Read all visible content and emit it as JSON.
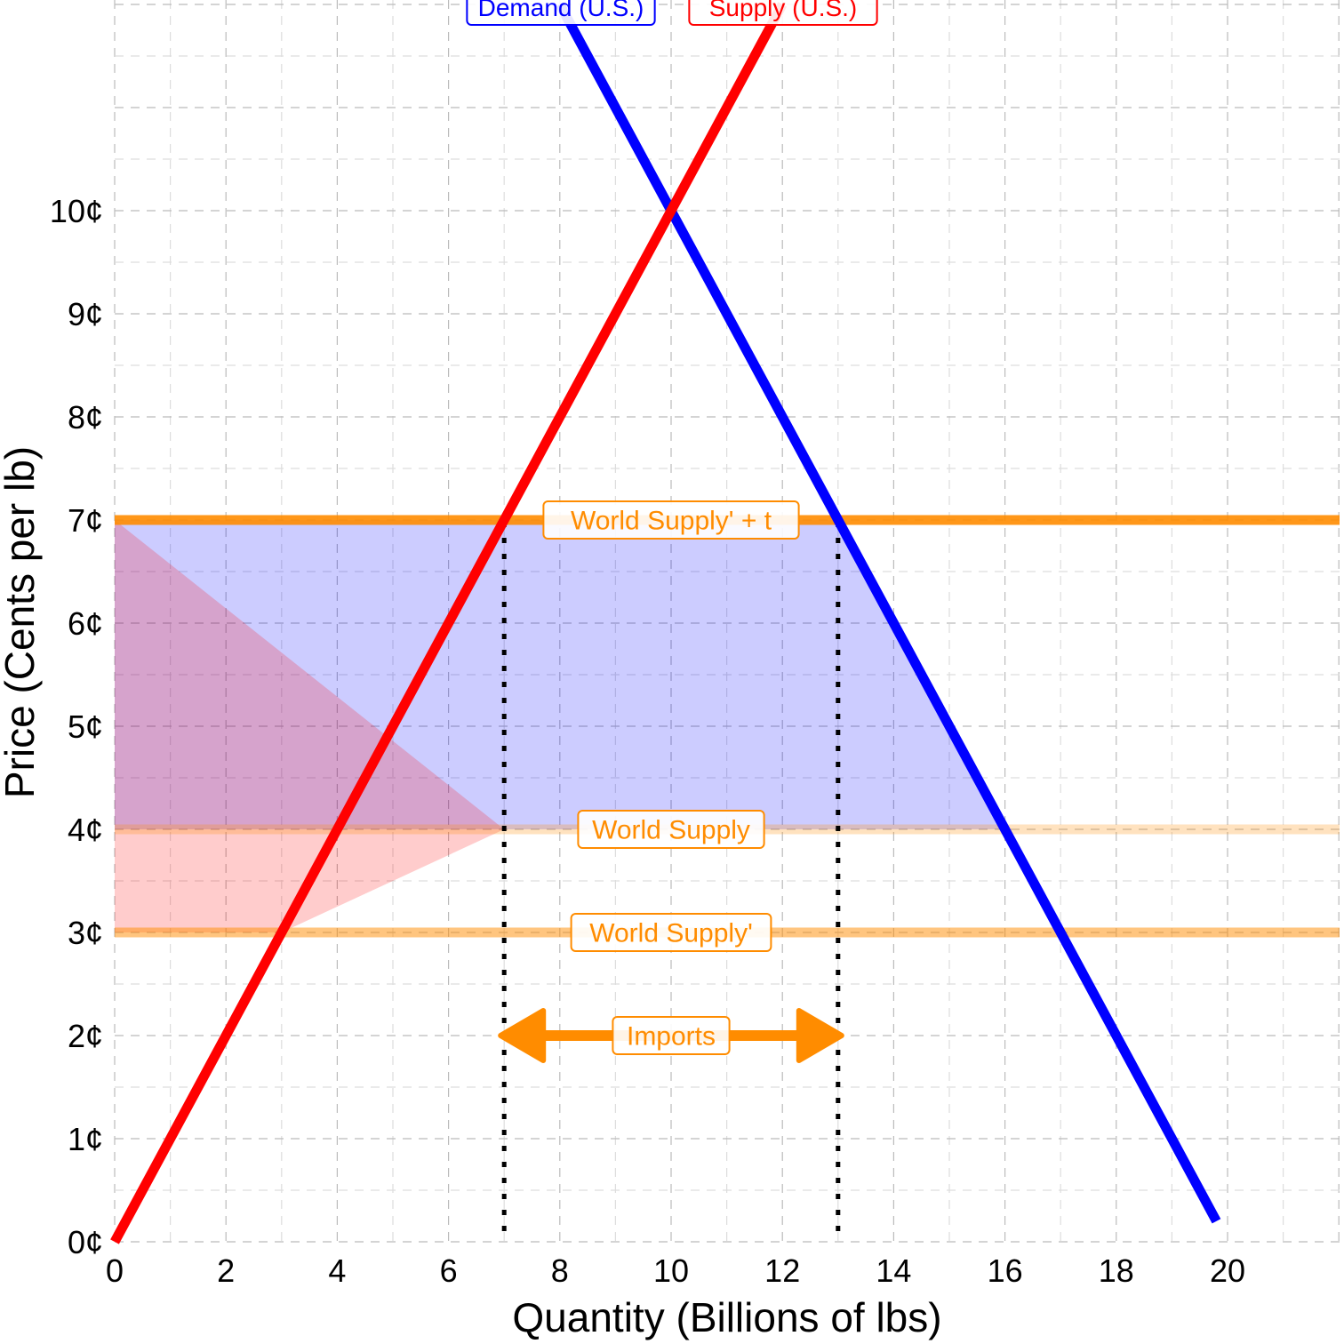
{
  "chart_data": {
    "type": "line",
    "title": "",
    "xlabel": "Quantity (Billions of lbs)",
    "ylabel": "Price (Cents per lb)",
    "xlim": [
      0,
      22
    ],
    "ylim": [
      0,
      12
    ],
    "grid": true,
    "x_ticks": [
      0,
      2,
      4,
      6,
      8,
      10,
      12,
      14,
      16,
      18,
      20
    ],
    "x_tick_labels": [
      "0",
      "2",
      "4",
      "6",
      "8",
      "10",
      "12",
      "14",
      "16",
      "18",
      "20"
    ],
    "y_ticks": [
      0,
      1,
      2,
      3,
      4,
      5,
      6,
      7,
      8,
      9,
      10
    ],
    "y_tick_labels": [
      "0¢",
      "1¢",
      "2¢",
      "3¢",
      "4¢",
      "5¢",
      "6¢",
      "7¢",
      "8¢",
      "9¢",
      "10¢"
    ],
    "series": [
      {
        "name": "Demand (U.S.)",
        "color": "#0000ff",
        "x": [
          8,
          19.8
        ],
        "y": [
          12,
          0.2
        ]
      },
      {
        "name": "Supply (U.S.)",
        "color": "#ff0000",
        "x": [
          0,
          12
        ],
        "y": [
          0,
          12
        ]
      }
    ],
    "hlines": [
      {
        "name": "World Supply' + t",
        "y": 7,
        "color": "#ff8c00",
        "opacity": 0.9
      },
      {
        "name": "World Supply",
        "y": 4,
        "color": "#ff8c00",
        "opacity": 0.25
      },
      {
        "name": "World Supply'",
        "y": 3,
        "color": "#ff8c00",
        "opacity": 0.5
      }
    ],
    "areas": [
      {
        "name": "consumer-area",
        "color": "#0000ff",
        "opacity": 0.2,
        "points": [
          [
            0,
            7
          ],
          [
            13,
            7
          ],
          [
            16,
            4
          ],
          [
            0,
            4
          ]
        ]
      },
      {
        "name": "producer-area",
        "color": "#ff0000",
        "opacity": 0.2,
        "points": [
          [
            0,
            7
          ],
          [
            7,
            4
          ],
          [
            3,
            3
          ],
          [
            0,
            3
          ]
        ]
      }
    ],
    "vlines": [
      {
        "x": 7,
        "y": [
          0,
          7
        ]
      },
      {
        "x": 13,
        "y": [
          0,
          7
        ]
      }
    ],
    "annotation": {
      "label": "Imports",
      "y": 2,
      "x": [
        7,
        13
      ],
      "color": "#ff8c00"
    }
  }
}
